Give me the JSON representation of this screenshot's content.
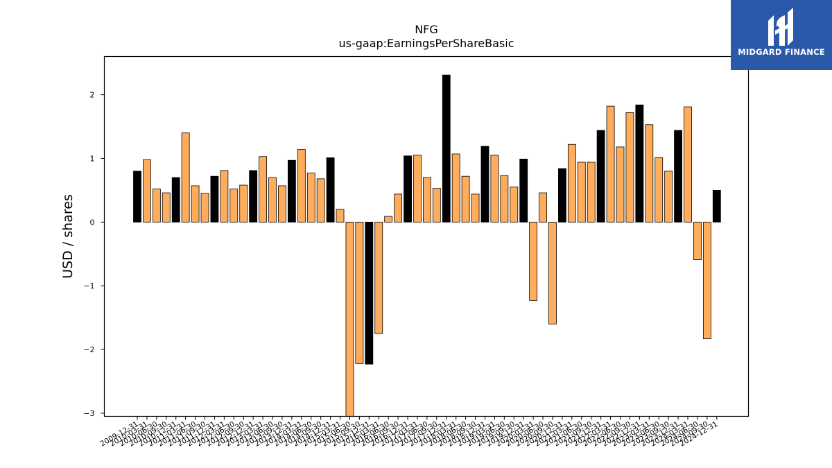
{
  "brand": {
    "name": "MIDGARD FINANCE",
    "bg_color": "#2b59aa"
  },
  "chart_data": {
    "type": "bar",
    "title": "NFG",
    "subtitle": "us-gaap:EarningsPerShareBasic",
    "xlabel": "",
    "ylabel": "USD / shares",
    "ylim": [
      -3.05,
      2.6
    ],
    "yticks": [
      -3,
      -2,
      -1,
      0,
      1,
      2
    ],
    "grid": false,
    "colors": {
      "annual": "#000000",
      "quarterly": "#ffad5c"
    },
    "categories": [
      "2009-12-31",
      "2010-03-31",
      "2010-06-30",
      "2010-09-30",
      "2010-12-31",
      "2011-03-31",
      "2011-06-30",
      "2011-09-30",
      "2011-12-31",
      "2012-03-31",
      "2012-06-30",
      "2012-09-30",
      "2012-12-31",
      "2013-03-31",
      "2013-06-30",
      "2013-09-30",
      "2013-12-31",
      "2014-03-31",
      "2014-06-30",
      "2014-09-30",
      "2014-12-31",
      "2015-03-31",
      "2015-06-30",
      "2015-09-30",
      "2015-12-31",
      "2016-03-31",
      "2016-06-30",
      "2016-09-30",
      "2016-12-31",
      "2017-03-31",
      "2017-06-30",
      "2017-09-30",
      "2017-12-31",
      "2018-03-31",
      "2018-06-30",
      "2018-09-30",
      "2018-12-31",
      "2019-03-31",
      "2019-06-30",
      "2019-09-30",
      "2019-12-31",
      "2020-03-31",
      "2020-06-30",
      "2020-09-30",
      "2020-12-31",
      "2021-03-31",
      "2021-06-30",
      "2021-09-30",
      "2021-12-31",
      "2022-03-31",
      "2022-06-30",
      "2022-09-30",
      "2022-12-31",
      "2023-03-31",
      "2023-06-30",
      "2023-09-30",
      "2023-12-31",
      "2024-03-31",
      "2024-06-30",
      "2024-09-30",
      "2024-12-31"
    ],
    "values": [
      0.8,
      0.98,
      0.52,
      0.46,
      0.7,
      1.4,
      0.57,
      0.45,
      0.72,
      0.81,
      0.52,
      0.58,
      0.81,
      1.03,
      0.7,
      0.57,
      0.97,
      1.14,
      0.77,
      0.68,
      1.01,
      0.2,
      -3.05,
      -2.22,
      -2.23,
      -1.75,
      0.09,
      0.44,
      1.04,
      1.05,
      0.7,
      0.53,
      2.31,
      1.07,
      0.72,
      0.44,
      1.19,
      1.05,
      0.73,
      0.55,
      0.99,
      -1.23,
      0.46,
      -1.6,
      0.84,
      1.22,
      0.94,
      0.94,
      1.44,
      1.82,
      1.18,
      1.72,
      1.84,
      1.53,
      1.01,
      0.8,
      1.44,
      1.81,
      -0.59,
      -1.83,
      0.5
    ],
    "period_type": [
      "annual",
      "quarterly",
      "quarterly",
      "quarterly",
      "annual",
      "quarterly",
      "quarterly",
      "quarterly",
      "annual",
      "quarterly",
      "quarterly",
      "quarterly",
      "annual",
      "quarterly",
      "quarterly",
      "quarterly",
      "annual",
      "quarterly",
      "quarterly",
      "quarterly",
      "annual",
      "quarterly",
      "quarterly",
      "quarterly",
      "annual",
      "quarterly",
      "quarterly",
      "quarterly",
      "annual",
      "quarterly",
      "quarterly",
      "quarterly",
      "annual",
      "quarterly",
      "quarterly",
      "quarterly",
      "annual",
      "quarterly",
      "quarterly",
      "quarterly",
      "annual",
      "quarterly",
      "quarterly",
      "quarterly",
      "annual",
      "quarterly",
      "quarterly",
      "quarterly",
      "annual",
      "quarterly",
      "quarterly",
      "quarterly",
      "annual",
      "quarterly",
      "quarterly",
      "quarterly",
      "annual",
      "quarterly",
      "quarterly",
      "quarterly",
      "annual"
    ]
  }
}
